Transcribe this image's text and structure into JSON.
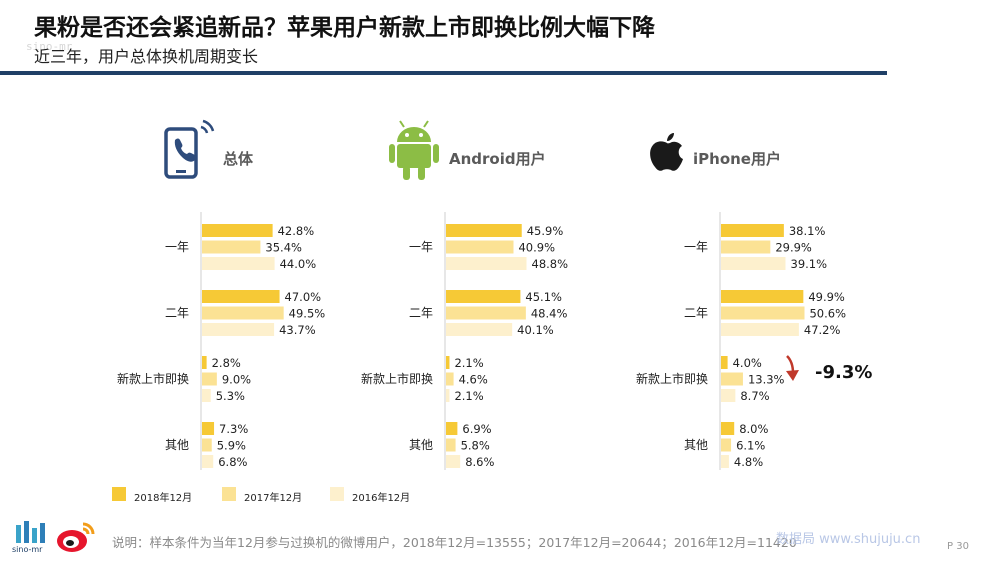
{
  "header": {
    "title": "果粉是否还会紧追新品？苹果用户新款上市即换比例大幅下降",
    "subtitle": "近三年，用户总体换机周期变长"
  },
  "watermark_top_left": "sino-mr",
  "colors": {
    "2018": "#f6c936",
    "2017": "#fbe294",
    "2016": "#fdf0cd",
    "header_rule": "#1f3f66",
    "arrow": "#c0392b"
  },
  "panels": [
    {
      "label": "总体",
      "icon": "mobile-phone-icon"
    },
    {
      "label": "Android用户",
      "icon": "android-icon"
    },
    {
      "label": "iPhone用户",
      "icon": "apple-icon"
    }
  ],
  "chart_data": [
    {
      "type": "bar",
      "orientation": "horizontal",
      "title": "总体",
      "categories": [
        "一年",
        "二年",
        "新款上市即换",
        "其他"
      ],
      "series": [
        {
          "name": "2018年12月",
          "values": [
            42.8,
            47.0,
            2.8,
            7.3
          ]
        },
        {
          "name": "2017年12月",
          "values": [
            35.4,
            49.5,
            9.0,
            5.9
          ]
        },
        {
          "name": "2016年12月",
          "values": [
            44.0,
            43.7,
            5.3,
            6.8
          ]
        }
      ],
      "value_labels": [
        [
          "42.8%",
          "47.0%",
          "2.8%",
          "7.3%"
        ],
        [
          "35.4%",
          "49.5%",
          "9.0%",
          "5.9%"
        ],
        [
          "44.0%",
          "43.7%",
          "5.3%",
          "6.8%"
        ]
      ],
      "xlim": [
        0,
        60
      ],
      "grid": false,
      "legend": "bottom"
    },
    {
      "type": "bar",
      "orientation": "horizontal",
      "title": "Android用户",
      "categories": [
        "一年",
        "二年",
        "新款上市即换",
        "其他"
      ],
      "series": [
        {
          "name": "2018年12月",
          "values": [
            45.9,
            45.1,
            2.1,
            6.9
          ]
        },
        {
          "name": "2017年12月",
          "values": [
            40.9,
            48.4,
            4.6,
            5.8
          ]
        },
        {
          "name": "2016年12月",
          "values": [
            48.8,
            40.1,
            2.1,
            8.6
          ]
        }
      ],
      "value_labels": [
        [
          "45.9%",
          "45.1%",
          "2.1%",
          "6.9%"
        ],
        [
          "40.9%",
          "48.4%",
          "4.6%",
          "5.8%"
        ],
        [
          "48.8%",
          "40.1%",
          "2.1%",
          "8.6%"
        ]
      ],
      "xlim": [
        0,
        60
      ],
      "grid": false,
      "legend": "bottom"
    },
    {
      "type": "bar",
      "orientation": "horizontal",
      "title": "iPhone用户",
      "categories": [
        "一年",
        "二年",
        "新款上市即换",
        "其他"
      ],
      "series": [
        {
          "name": "2018年12月",
          "values": [
            38.1,
            49.9,
            4.0,
            8.0
          ]
        },
        {
          "name": "2017年12月",
          "values": [
            29.9,
            50.6,
            13.3,
            6.1
          ]
        },
        {
          "name": "2016年12月",
          "values": [
            39.1,
            47.2,
            8.7,
            4.8
          ]
        }
      ],
      "value_labels": [
        [
          "38.1%",
          "49.9%",
          "4.0%",
          "8.0%"
        ],
        [
          "29.9%",
          "50.6%",
          "13.3%",
          "6.1%"
        ],
        [
          "39.1%",
          "47.2%",
          "8.7%",
          "4.8%"
        ]
      ],
      "xlim": [
        0,
        60
      ],
      "grid": false,
      "legend": "bottom",
      "annotation": "-9.3%"
    }
  ],
  "legend": [
    "2018年12月",
    "2017年12月",
    "2016年12月"
  ],
  "footer": {
    "note": "说明：样本条件为当年12月参与过换机的微博用户，2018年12月=13555；2017年12月=20644；2016年12月=11420",
    "logo_text": "sino-mr",
    "watermark": "数据局 www.shujuju.cn",
    "page": "P 30"
  }
}
